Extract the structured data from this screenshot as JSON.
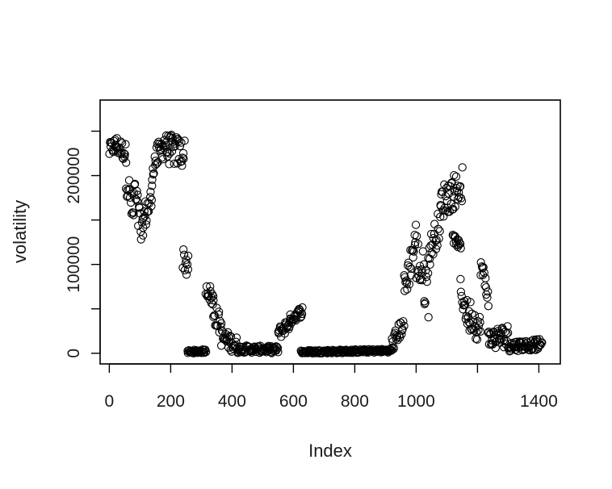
{
  "chart_data": {
    "type": "scatter",
    "marker": "open-circle",
    "xlabel": "Index",
    "ylabel": "volatility",
    "xlim": [
      -30,
      1470
    ],
    "ylim": [
      -12000,
      285000
    ],
    "x_ticks": [
      0,
      200,
      400,
      600,
      800,
      1000,
      1200,
      1400
    ],
    "x_tick_labels": [
      "0",
      "200",
      "400",
      "600",
      "800",
      "1000",
      "",
      "1400"
    ],
    "y_ticks": [
      0,
      50000,
      100000,
      150000,
      200000,
      250000
    ],
    "y_tick_labels": [
      "0",
      "",
      "100000",
      "",
      "200000",
      ""
    ],
    "grid": false,
    "legend": "none",
    "series": [
      {
        "segments": [
          {
            "x_start": 0,
            "x_end": 20,
            "y_start": 228000,
            "y_end": 235000,
            "spread": 18000
          },
          {
            "x_start": 20,
            "x_end": 55,
            "y_start": 235000,
            "y_end": 225000,
            "spread": 22000
          },
          {
            "x_start": 55,
            "x_end": 80,
            "y_start": 200000,
            "y_end": 150000,
            "spread": 40000
          },
          {
            "x_start": 80,
            "x_end": 110,
            "y_start": 185000,
            "y_end": 125000,
            "spread": 45000
          },
          {
            "x_start": 110,
            "x_end": 140,
            "y_start": 150000,
            "y_end": 175000,
            "spread": 35000
          },
          {
            "x_start": 140,
            "x_end": 185,
            "y_start": 210000,
            "y_end": 240000,
            "spread": 30000
          },
          {
            "x_start": 185,
            "x_end": 245,
            "y_start": 230000,
            "y_end": 225000,
            "spread": 35000
          },
          {
            "x_start": 240,
            "x_end": 258,
            "y_start": 110000,
            "y_end": 95000,
            "spread": 30000
          },
          {
            "x_start": 255,
            "x_end": 315,
            "y_start": 1500,
            "y_end": 2500,
            "spread": 4000
          },
          {
            "x_start": 315,
            "x_end": 340,
            "y_start": 75000,
            "y_end": 60000,
            "spread": 20000
          },
          {
            "x_start": 338,
            "x_end": 365,
            "y_start": 48000,
            "y_end": 30000,
            "spread": 25000
          },
          {
            "x_start": 365,
            "x_end": 420,
            "y_start": 18000,
            "y_end": 8000,
            "spread": 20000
          },
          {
            "x_start": 420,
            "x_end": 550,
            "y_start": 5000,
            "y_end": 4000,
            "spread": 8000
          },
          {
            "x_start": 550,
            "x_end": 590,
            "y_start": 22000,
            "y_end": 35000,
            "spread": 15000
          },
          {
            "x_start": 590,
            "x_end": 630,
            "y_start": 38000,
            "y_end": 48000,
            "spread": 12000
          },
          {
            "x_start": 625,
            "x_end": 920,
            "y_start": 1500,
            "y_end": 3000,
            "spread": 4000
          },
          {
            "x_start": 920,
            "x_end": 960,
            "y_start": 8000,
            "y_end": 35000,
            "spread": 20000
          },
          {
            "x_start": 960,
            "x_end": 1000,
            "y_start": 70000,
            "y_end": 130000,
            "spread": 40000
          },
          {
            "x_start": 1000,
            "x_end": 1040,
            "y_start": 110000,
            "y_end": 70000,
            "spread": 60000
          },
          {
            "x_start": 1040,
            "x_end": 1080,
            "y_start": 110000,
            "y_end": 150000,
            "spread": 35000
          },
          {
            "x_start": 1080,
            "x_end": 1150,
            "y_start": 170000,
            "y_end": 190000,
            "spread": 40000
          },
          {
            "x_start": 1120,
            "x_end": 1145,
            "y_start": 130000,
            "y_end": 120000,
            "spread": 10000
          },
          {
            "x_start": 1145,
            "x_end": 1175,
            "y_start": 70000,
            "y_end": 35000,
            "spread": 30000
          },
          {
            "x_start": 1175,
            "x_end": 1210,
            "y_start": 45000,
            "y_end": 25000,
            "spread": 35000
          },
          {
            "x_start": 1210,
            "x_end": 1235,
            "y_start": 100000,
            "y_end": 65000,
            "spread": 25000
          },
          {
            "x_start": 1235,
            "x_end": 1300,
            "y_start": 15000,
            "y_end": 20000,
            "spread": 25000
          },
          {
            "x_start": 1300,
            "x_end": 1410,
            "y_start": 8000,
            "y_end": 10000,
            "spread": 12000
          }
        ]
      }
    ]
  }
}
